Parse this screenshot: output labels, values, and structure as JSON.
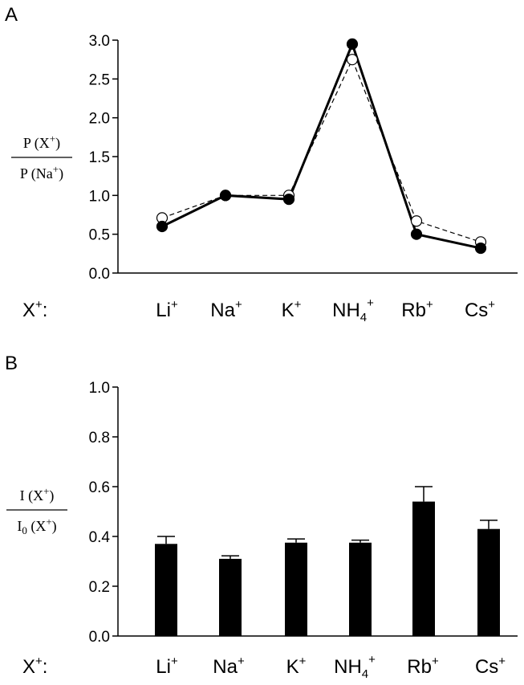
{
  "chart_data": [
    {
      "panel": "A",
      "type": "line",
      "categories": [
        {
          "base": "Li",
          "sup": "+"
        },
        {
          "base": "Na",
          "sup": "+"
        },
        {
          "base": "K",
          "sup": "+"
        },
        {
          "base": "NH",
          "sub": "4",
          "sup": "+"
        },
        {
          "base": "Rb",
          "sup": "+"
        },
        {
          "base": "Cs",
          "sup": "+"
        }
      ],
      "x_prefix": {
        "base": "X",
        "sup": "+",
        "suffix": ":"
      },
      "ylabel": {
        "numerator": {
          "text": "P (X",
          "sup": "+",
          "close": ")"
        },
        "denominator": {
          "text": "P (Na",
          "sup": "+",
          "close": ")"
        }
      },
      "ylim": [
        0,
        3.0
      ],
      "yticks": [
        "0.0",
        "0.5",
        "1.0",
        "1.5",
        "2.0",
        "2.5",
        "3.0"
      ],
      "series": [
        {
          "marker": "filled-circle",
          "line": "solid",
          "values": [
            0.6,
            1.0,
            0.95,
            2.95,
            0.5,
            0.32
          ]
        },
        {
          "marker": "open-circle",
          "line": "dashed",
          "values": [
            0.71,
            1.0,
            1.0,
            2.75,
            0.67,
            0.4
          ]
        }
      ]
    },
    {
      "panel": "B",
      "type": "bar",
      "categories": [
        {
          "base": "Li",
          "sup": "+"
        },
        {
          "base": "Na",
          "sup": "+"
        },
        {
          "base": "K",
          "sup": "+"
        },
        {
          "base": "NH",
          "sub": "4",
          "sup": "+"
        },
        {
          "base": "Rb",
          "sup": "+"
        },
        {
          "base": "Cs",
          "sup": "+"
        }
      ],
      "x_prefix": {
        "base": "X",
        "sup": "+",
        "suffix": ":"
      },
      "ylabel": {
        "numerator": {
          "text": "I (X",
          "sup": "+",
          "close": ")"
        },
        "denominator": {
          "text": "I",
          "sub": "0",
          "text2": " (X",
          "sup": "+",
          "close": ")"
        }
      },
      "ylim": [
        0,
        1.0
      ],
      "yticks": [
        "0.0",
        "0.2",
        "0.4",
        "0.6",
        "0.8",
        "1.0"
      ],
      "values": [
        0.37,
        0.31,
        0.375,
        0.375,
        0.54,
        0.43
      ],
      "errors": [
        0.03,
        0.012,
        0.015,
        0.01,
        0.06,
        0.035
      ],
      "bar_color": "#000000"
    }
  ]
}
